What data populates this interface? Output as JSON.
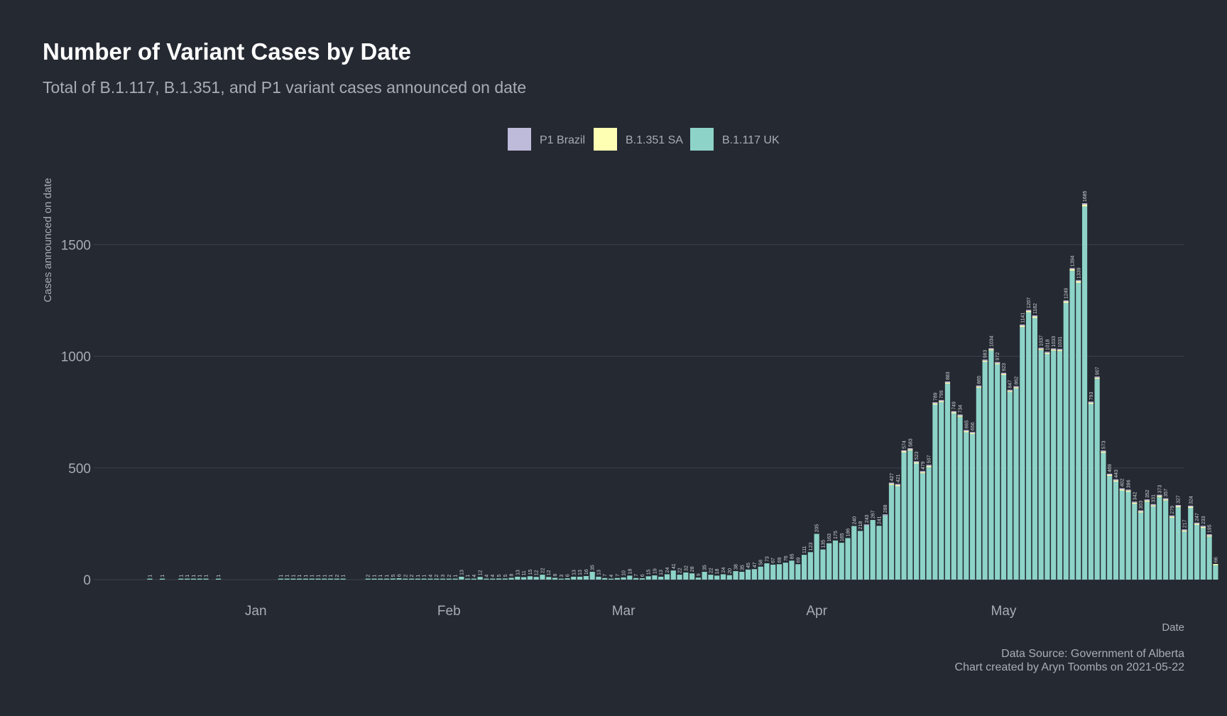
{
  "colors": {
    "background": "#252932",
    "title": "#ffffff",
    "muted_text": "#a8adb5",
    "grid": "#3c414b",
    "uk": "#8dd3c7",
    "sa": "#ffffb3",
    "p1": "#bebada"
  },
  "chart_data": {
    "type": "bar",
    "stacked": true,
    "title": "Number of Variant Cases by Date",
    "subtitle": "Total of B.1.117, B.1.351, and P1 variant cases announced on date",
    "xlabel": "Date",
    "ylabel": "Cases announced on date",
    "ylim": [
      0,
      1800
    ],
    "yticks": [
      0,
      500,
      1000,
      1500
    ],
    "grid": true,
    "legend_placement": "top-center",
    "legend": [
      {
        "name": "P1 Brazil",
        "color": "#bebada"
      },
      {
        "name": "B.1.351 SA",
        "color": "#ffffb3"
      },
      {
        "name": "B.1.117 UK",
        "color": "#8dd3c7"
      }
    ],
    "x_start": "2020-12-15",
    "x_end": "2021-05-21",
    "x_range": [
      "2020-12-06",
      "2021-05-30"
    ],
    "month_ticks": [
      {
        "label": "Jan",
        "date": "2021-01-01"
      },
      {
        "label": "Feb",
        "date": "2021-02-01"
      },
      {
        "label": "Mar",
        "date": "2021-03-01"
      },
      {
        "label": "Apr",
        "date": "2021-04-01"
      },
      {
        "label": "May",
        "date": "2021-05-01"
      }
    ],
    "totals": [
      1,
      0,
      1,
      0,
      0,
      1,
      1,
      1,
      1,
      1,
      0,
      1,
      0,
      0,
      0,
      0,
      0,
      0,
      0,
      0,
      0,
      1,
      1,
      1,
      1,
      1,
      1,
      1,
      1,
      1,
      2,
      1,
      0,
      0,
      0,
      2,
      1,
      1,
      1,
      5,
      6,
      2,
      2,
      1,
      1,
      4,
      2,
      3,
      2,
      1,
      13,
      1,
      4,
      12,
      4,
      4,
      5,
      5,
      8,
      13,
      11,
      15,
      12,
      22,
      12,
      8,
      3,
      6,
      13,
      13,
      16,
      35,
      13,
      7,
      4,
      7,
      10,
      18,
      7,
      6,
      15,
      19,
      13,
      24,
      41,
      22,
      32,
      28,
      9,
      35,
      22,
      18,
      24,
      20,
      38,
      35,
      45,
      47,
      58,
      73,
      67,
      69,
      76,
      85,
      69,
      111,
      123,
      205,
      135,
      163,
      175,
      165,
      186,
      240,
      218,
      243,
      267,
      241,
      288,
      427,
      421,
      574,
      583,
      523,
      479,
      507,
      789,
      799,
      883,
      749,
      734,
      665,
      656,
      865,
      983,
      1034,
      972,
      923,
      847,
      862,
      1141,
      1207,
      1182,
      1037,
      1018,
      1033,
      1031,
      1249,
      1394,
      1339,
      1685,
      793,
      907,
      573,
      469,
      443,
      402,
      396,
      342,
      303,
      352,
      331,
      373,
      357,
      279,
      327,
      217,
      324,
      247,
      233,
      195,
      66
    ],
    "p1": [
      0,
      0,
      0,
      0,
      0,
      0,
      0,
      0,
      0,
      0,
      0,
      0,
      0,
      0,
      0,
      0,
      0,
      0,
      0,
      0,
      0,
      0,
      0,
      0,
      0,
      0,
      0,
      0,
      0,
      0,
      0,
      0,
      0,
      0,
      0,
      0,
      0,
      0,
      0,
      0,
      0,
      0,
      0,
      0,
      0,
      0,
      0,
      0,
      0,
      0,
      0,
      0,
      0,
      0,
      0,
      0,
      0,
      0,
      0,
      0,
      0,
      0,
      0,
      0,
      0,
      0,
      0,
      0,
      0,
      0,
      0,
      0,
      0,
      0,
      0,
      0,
      0,
      0,
      0,
      0,
      0,
      0,
      0,
      0,
      0,
      0,
      0,
      0,
      0,
      0,
      0,
      0,
      0,
      0,
      0,
      0,
      0,
      0,
      0,
      0,
      0,
      0,
      0,
      0,
      0,
      0,
      0,
      0,
      0,
      0,
      0,
      0,
      0,
      0,
      0,
      1,
      0,
      0,
      1,
      1,
      1,
      2,
      2,
      1,
      1,
      1,
      2,
      2,
      2,
      2,
      2,
      2,
      2,
      2,
      3,
      3,
      3,
      3,
      3,
      2,
      4,
      4,
      4,
      4,
      3,
      3,
      3,
      4,
      4,
      3,
      6,
      2,
      3,
      2,
      2,
      2,
      1,
      1,
      1,
      1,
      1,
      1,
      1,
      1,
      1,
      1,
      1,
      1,
      1,
      1,
      1,
      0
    ],
    "sa": [
      0,
      0,
      0,
      0,
      0,
      0,
      0,
      0,
      0,
      0,
      0,
      0,
      0,
      0,
      0,
      0,
      0,
      0,
      0,
      0,
      0,
      0,
      0,
      0,
      0,
      0,
      0,
      0,
      0,
      0,
      0,
      0,
      0,
      0,
      0,
      0,
      0,
      0,
      0,
      0,
      0,
      0,
      0,
      0,
      0,
      0,
      0,
      0,
      0,
      0,
      0,
      0,
      0,
      0,
      0,
      0,
      0,
      0,
      0,
      0,
      0,
      0,
      0,
      0,
      0,
      0,
      0,
      0,
      0,
      0,
      0,
      0,
      0,
      0,
      0,
      0,
      0,
      0,
      0,
      0,
      0,
      0,
      0,
      0,
      0,
      0,
      0,
      0,
      0,
      0,
      0,
      0,
      0,
      0,
      0,
      0,
      0,
      0,
      0,
      0,
      0,
      0,
      0,
      0,
      0,
      0,
      0,
      0,
      0,
      0,
      0,
      0,
      0,
      0,
      0,
      0,
      0,
      0,
      0,
      2,
      2,
      3,
      3,
      2,
      2,
      2,
      3,
      3,
      4,
      3,
      3,
      3,
      3,
      4,
      5,
      5,
      5,
      4,
      4,
      4,
      6,
      6,
      6,
      5,
      5,
      5,
      5,
      6,
      7,
      7,
      8,
      4,
      5,
      3,
      3,
      2,
      2,
      2,
      2,
      2,
      2,
      2,
      2,
      2,
      1,
      2,
      1,
      2,
      1,
      1,
      1,
      1
    ],
    "labels": [
      "1",
      "",
      "1",
      "",
      "",
      "1",
      "1",
      "1",
      "1",
      "1",
      "",
      "1",
      "",
      "",
      "",
      "",
      "",
      "",
      "",
      "",
      "",
      "1",
      "1",
      "1",
      "1",
      "1",
      "1",
      "1",
      "1",
      "1",
      "2",
      "1",
      "",
      "",
      "",
      "2",
      "1",
      "1",
      "1",
      "5",
      "6",
      "2",
      "2",
      "1",
      "1",
      "4",
      "2",
      "3",
      "2",
      "1",
      "13",
      "1",
      "4",
      "12",
      "4",
      "4",
      "5",
      "5",
      "8",
      "13",
      "11",
      "15",
      "12",
      "22",
      "12",
      "8",
      "3",
      "6",
      "13",
      "13",
      "16",
      "35",
      "13",
      "7",
      "4",
      "7",
      "10",
      "18",
      "7",
      "6",
      "15",
      "19",
      "13",
      "24",
      "41",
      "22",
      "32",
      "28",
      "9",
      "35",
      "22",
      "18",
      "24",
      "20",
      "38",
      "35",
      "45",
      "47",
      "58",
      "73",
      "67",
      "69",
      "76",
      "85",
      "69",
      "111",
      "123",
      "205",
      "135",
      "163",
      "175",
      "165",
      "186",
      "240",
      "218",
      "243",
      "267",
      "241",
      "288",
      "427",
      "421",
      "574",
      "583",
      "523",
      "479",
      "507",
      "789",
      "799",
      "883",
      "749",
      "734",
      "665",
      "656",
      "865",
      "983",
      "1034",
      "972",
      "923",
      "847",
      "862",
      "1141",
      "1207",
      "1182",
      "1037",
      "1018",
      "1033",
      "1031",
      "1249",
      "1394",
      "1339",
      "1685",
      "793",
      "907",
      "573",
      "469",
      "443",
      "402",
      "396",
      "342",
      "303",
      "352",
      "331",
      "373",
      "357",
      "279",
      "327",
      "217",
      "324",
      "247",
      "233",
      "195",
      "66"
    ]
  },
  "caption": {
    "line1": "Data Source: Government of Alberta",
    "line2": "Chart created by Aryn Toombs on 2021-05-22"
  }
}
